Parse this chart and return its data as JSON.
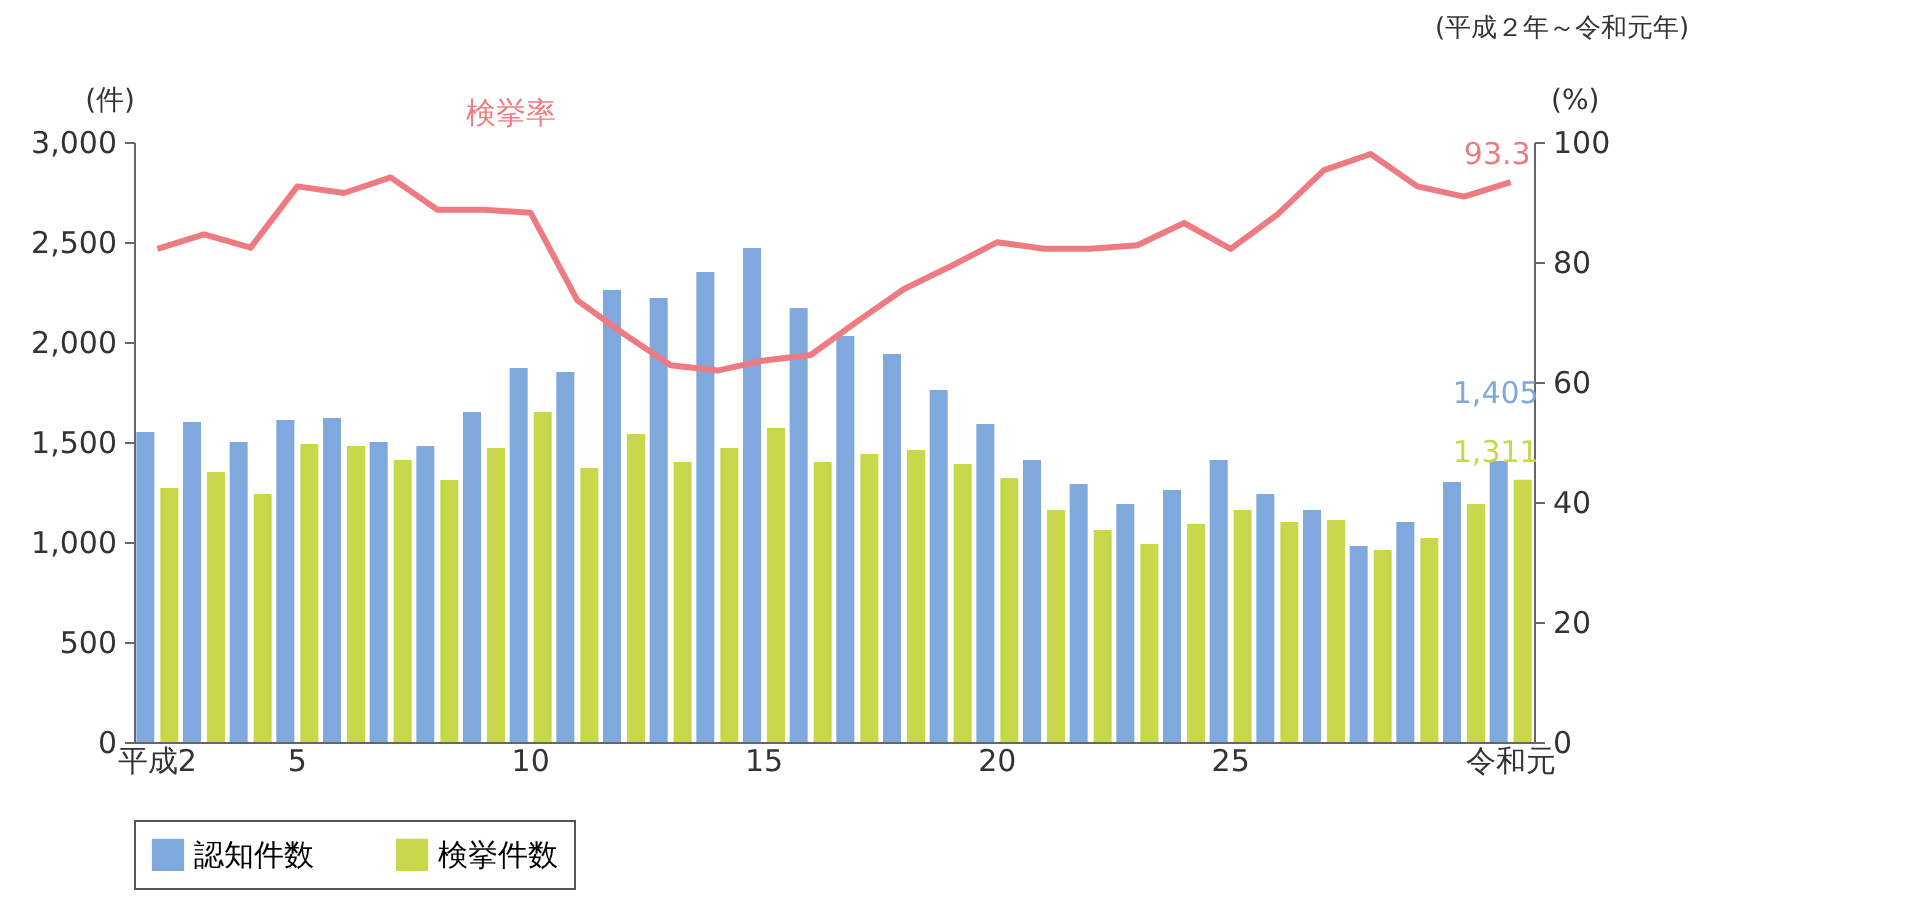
{
  "chart_data": {
    "type": "bar",
    "ylabel": "(件)",
    "y2label": "(%)",
    "annotations": [
      "(平成２年～令和元年)"
    ],
    "categories": [
      "平成2",
      null,
      null,
      "5",
      null,
      null,
      null,
      null,
      "10",
      null,
      null,
      null,
      null,
      "15",
      null,
      null,
      null,
      null,
      "20",
      null,
      null,
      null,
      null,
      "25",
      null,
      null,
      null,
      null,
      null,
      "令和元"
    ],
    "series": [
      {
        "name": "認知件数",
        "color": "#7fa8dc",
        "values": [
          1550,
          1600,
          1500,
          1610,
          1620,
          1500,
          1480,
          1650,
          1870,
          1850,
          2260,
          2220,
          2350,
          2470,
          2170,
          2030,
          1940,
          1760,
          1590,
          1410,
          1290,
          1190,
          1260,
          1410,
          1240,
          1160,
          980,
          1100,
          1300,
          1405
        ],
        "value_labels": [
          null,
          null,
          null,
          null,
          null,
          null,
          null,
          null,
          null,
          null,
          null,
          null,
          null,
          null,
          null,
          null,
          null,
          null,
          null,
          null,
          null,
          null,
          null,
          null,
          null,
          null,
          null,
          null,
          null,
          "1,405"
        ]
      },
      {
        "name": "検挙件数",
        "color": "#c8d84a",
        "values": [
          1270,
          1350,
          1240,
          1490,
          1480,
          1410,
          1310,
          1470,
          1650,
          1370,
          1540,
          1400,
          1470,
          1570,
          1400,
          1440,
          1460,
          1390,
          1320,
          1160,
          1060,
          990,
          1090,
          1160,
          1100,
          1110,
          960,
          1020,
          1190,
          1311
        ],
        "value_labels": [
          null,
          null,
          null,
          null,
          null,
          null,
          null,
          null,
          null,
          null,
          null,
          null,
          null,
          null,
          null,
          null,
          null,
          null,
          null,
          null,
          null,
          null,
          null,
          null,
          null,
          null,
          null,
          null,
          null,
          "1,311"
        ]
      },
      {
        "name": "検挙率",
        "type": "line",
        "axis": "y2",
        "color": "#ee7b82",
        "values": [
          82.2,
          84.6,
          82.4,
          92.6,
          91.5,
          94.1,
          88.7,
          88.7,
          88.2,
          73.6,
          68,
          62.8,
          61.9,
          63.6,
          64.5,
          70.1,
          75.5,
          79.3,
          83.3,
          82.2,
          82.2,
          82.8,
          86.5,
          82.2,
          87.9,
          95.3,
          98,
          92.6,
          90.9,
          93.3
        ],
        "value_labels": [
          null,
          null,
          null,
          null,
          null,
          null,
          null,
          null,
          null,
          null,
          null,
          null,
          null,
          null,
          null,
          null,
          null,
          null,
          null,
          null,
          null,
          null,
          null,
          null,
          null,
          null,
          null,
          null,
          null,
          "93.3"
        ]
      }
    ],
    "ylim": [
      0,
      3000
    ],
    "yticks": [
      0,
      500,
      {
        "value": 1000,
        "label": "1,000"
      },
      {
        "value": 1500,
        "label": "1,500"
      },
      {
        "value": 2000,
        "label": "2,000"
      },
      {
        "value": 2500,
        "label": "2,500"
      },
      {
        "value": 3000,
        "label": "3,000"
      }
    ],
    "y2lim": [
      0,
      100
    ],
    "y2ticks": [
      0,
      20,
      40,
      60,
      80,
      100
    ],
    "grid": false,
    "legend": "bottom"
  }
}
